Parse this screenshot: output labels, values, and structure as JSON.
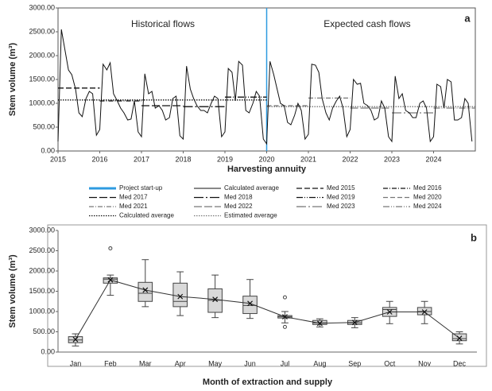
{
  "chart_data": [
    {
      "type": "line",
      "label": "a",
      "annotations": [
        "Historical flows",
        "Expected cash flows"
      ],
      "x_label": "Harvesting annuity",
      "y_label": "Stem volume (m³)",
      "xlim": [
        2015,
        2025
      ],
      "xticks": [
        2015,
        2016,
        2017,
        2018,
        2019,
        2020,
        2021,
        2022,
        2023,
        2024
      ],
      "ylim": [
        0,
        3000
      ],
      "yticks": [
        {
          "value": 0,
          "label": "0.00"
        },
        {
          "value": 500,
          "label": "500.00"
        },
        {
          "value": 1000,
          "label": "1000.00"
        },
        {
          "value": 1500,
          "label": "1500.00"
        },
        {
          "value": 2000,
          "label": "2000.00"
        },
        {
          "value": 2500,
          "label": "2500.00"
        },
        {
          "value": 3000,
          "label": "3000.00"
        }
      ],
      "startup": {
        "name": "Project start-up",
        "x": 2020,
        "color": "#2e9be0"
      },
      "series": [
        {
          "name": "Calculated average",
          "color": "#111111",
          "x": [
            2015.0,
            2015.08,
            2015.17,
            2015.25,
            2015.33,
            2015.42,
            2015.5,
            2015.58,
            2015.67,
            2015.75,
            2015.83,
            2015.92,
            2016.0,
            2016.08,
            2016.17,
            2016.25,
            2016.33,
            2016.42,
            2016.5,
            2016.58,
            2016.67,
            2016.75,
            2016.83,
            2016.92,
            2017.0,
            2017.08,
            2017.17,
            2017.25,
            2017.33,
            2017.42,
            2017.5,
            2017.58,
            2017.67,
            2017.75,
            2017.83,
            2017.92,
            2018.0,
            2018.08,
            2018.17,
            2018.25,
            2018.33,
            2018.42,
            2018.5,
            2018.58,
            2018.67,
            2018.75,
            2018.83,
            2018.92,
            2019.0,
            2019.08,
            2019.17,
            2019.25,
            2019.33,
            2019.42,
            2019.5,
            2019.58,
            2019.67,
            2019.75,
            2019.83,
            2019.92,
            2020.0,
            2020.08,
            2020.17,
            2020.25,
            2020.33,
            2020.42,
            2020.5,
            2020.58,
            2020.67,
            2020.75,
            2020.83,
            2020.92,
            2021.0,
            2021.08,
            2021.17,
            2021.25,
            2021.33,
            2021.42,
            2021.5,
            2021.58,
            2021.67,
            2021.75,
            2021.83,
            2021.92,
            2022.0,
            2022.08,
            2022.17,
            2022.25,
            2022.33,
            2022.42,
            2022.5,
            2022.58,
            2022.67,
            2022.75,
            2022.83,
            2022.92,
            2023.0,
            2023.08,
            2023.17,
            2023.25,
            2023.33,
            2023.42,
            2023.5,
            2023.58,
            2023.67,
            2023.75,
            2023.83,
            2023.92,
            2024.0,
            2024.08,
            2024.17,
            2024.25,
            2024.33,
            2024.42,
            2024.5,
            2024.58,
            2024.67,
            2024.75,
            2024.83,
            2024.92
          ],
          "values": [
            200,
            2550,
            2100,
            1700,
            1600,
            1300,
            800,
            720,
            1100,
            1250,
            1200,
            330,
            450,
            1820,
            1700,
            1850,
            1200,
            1050,
            900,
            800,
            650,
            670,
            1050,
            400,
            300,
            1620,
            1200,
            1250,
            900,
            950,
            850,
            650,
            700,
            1100,
            1150,
            320,
            250,
            1780,
            1300,
            1100,
            950,
            850,
            850,
            800,
            1000,
            1150,
            1100,
            300,
            400,
            1730,
            1650,
            1050,
            1880,
            1800,
            850,
            800,
            1000,
            1250,
            1150,
            250,
            150,
            1880,
            1600,
            1300,
            1000,
            950,
            600,
            550,
            750,
            1000,
            850,
            250,
            350,
            1820,
            1800,
            1650,
            1100,
            800,
            650,
            900,
            1050,
            1150,
            900,
            300,
            450,
            1500,
            1400,
            1420,
            1000,
            950,
            850,
            650,
            700,
            1050,
            900,
            300,
            200,
            1570,
            1100,
            1200,
            850,
            800,
            700,
            700,
            1000,
            1050,
            900,
            200,
            300,
            1400,
            1350,
            900,
            1500,
            1450,
            650,
            650,
            700,
            1100,
            1000,
            200
          ]
        }
      ],
      "reference_lines": [
        {
          "name": "Med 2015",
          "value": 1320,
          "x": [
            2015,
            2016
          ],
          "color": "#111111",
          "dash": "7 3"
        },
        {
          "name": "Med 2016",
          "value": 1050,
          "x": [
            2016,
            2017
          ],
          "color": "#111111",
          "dash": "6 2 1 2"
        },
        {
          "name": "Med 2017",
          "value": 950,
          "x": [
            2017,
            2018
          ],
          "color": "#111111",
          "dash": "10 3"
        },
        {
          "name": "Med 2018",
          "value": 930,
          "x": [
            2018,
            2019
          ],
          "color": "#111111",
          "dash": "12 3 2 3"
        },
        {
          "name": "Med 2019",
          "value": 1130,
          "x": [
            2019,
            2020
          ],
          "color": "#111111",
          "dash": "8 2 1 2 1 2"
        },
        {
          "name": "Med 2020",
          "value": 950,
          "x": [
            2020,
            2021
          ],
          "color": "#777777",
          "dash": "6 3"
        },
        {
          "name": "Med 2021",
          "value": 1110,
          "x": [
            2021,
            2022
          ],
          "color": "#777777",
          "dash": "6 2 1 2"
        },
        {
          "name": "Med 2022",
          "value": 900,
          "x": [
            2022,
            2023
          ],
          "color": "#777777",
          "dash": "10 3"
        },
        {
          "name": "Med 2023",
          "value": 800,
          "x": [
            2023,
            2024
          ],
          "color": "#777777",
          "dash": "12 3 2 3"
        },
        {
          "name": "Med 2024",
          "value": 900,
          "x": [
            2024,
            2025
          ],
          "color": "#777777",
          "dash": "8 2 1 2 1 2"
        },
        {
          "name": "Calculated average",
          "value": 1070,
          "x": [
            2015,
            2020
          ],
          "color": "#111111",
          "dash": "1.5 1.5"
        },
        {
          "name": "Estimated average",
          "value": 930,
          "x": [
            2020,
            2025
          ],
          "color": "#777777",
          "dash": "1.5 1.5"
        }
      ]
    },
    {
      "type": "box",
      "label": "b",
      "x_label": "Month of extraction and supply",
      "y_label": "Stem volume (m³)",
      "categories": [
        "Jan",
        "Feb",
        "Mar",
        "Apr",
        "May",
        "Jun",
        "Jul",
        "Aug",
        "Sep",
        "Oct",
        "Nov",
        "Dec"
      ],
      "ylim": [
        0,
        3000
      ],
      "yticks": [
        {
          "value": 0,
          "label": "0.00"
        },
        {
          "value": 500,
          "label": "500.00"
        },
        {
          "value": 1000,
          "label": "1000.00"
        },
        {
          "value": 1500,
          "label": "1500.00"
        },
        {
          "value": 2000,
          "label": "2000.00"
        },
        {
          "value": 2500,
          "label": "2500.00"
        },
        {
          "value": 3000,
          "label": "3000.00"
        }
      ],
      "box_color": "#d9d9d9",
      "min": [
        150,
        1400,
        1120,
        900,
        850,
        830,
        720,
        620,
        600,
        700,
        700,
        200
      ],
      "q1": [
        230,
        1700,
        1250,
        1120,
        980,
        950,
        840,
        680,
        680,
        880,
        920,
        280
      ],
      "median": [
        300,
        1800,
        1450,
        1250,
        1280,
        1150,
        870,
        720,
        720,
        1050,
        1000,
        330
      ],
      "q3": [
        380,
        1830,
        1720,
        1700,
        1560,
        1380,
        900,
        780,
        780,
        1100,
        1100,
        450
      ],
      "max": [
        450,
        1900,
        2280,
        1980,
        1900,
        1790,
        1000,
        820,
        850,
        1250,
        1250,
        500
      ],
      "mean": [
        310,
        1780,
        1530,
        1370,
        1300,
        1200,
        870,
        710,
        730,
        990,
        990,
        340
      ],
      "outliers": [
        [],
        [
          2560
        ],
        [],
        [],
        [],
        [],
        [
          620,
          1350
        ],
        [],
        [],
        [],
        [],
        []
      ]
    }
  ]
}
